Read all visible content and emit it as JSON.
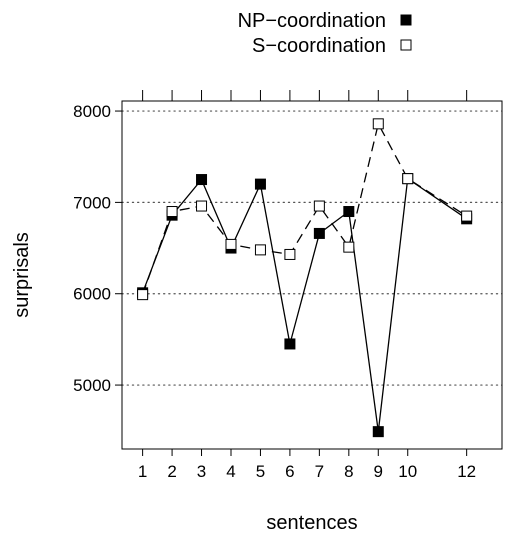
{
  "chart_data": {
    "type": "line",
    "xlabel": "sentences",
    "ylabel": "surprisals",
    "x_ticks": [
      1,
      2,
      3,
      4,
      5,
      6,
      7,
      8,
      9,
      10,
      12
    ],
    "y_ticks": [
      5000,
      6000,
      7000,
      8000
    ],
    "xlim": [
      0.3,
      13.2
    ],
    "ylim": [
      4300,
      8110
    ],
    "grid": "horizontal dotted",
    "legend_position": "top",
    "series": [
      {
        "name": "NP−coordination",
        "marker": "filled-square",
        "line_style": "solid",
        "x": [
          1,
          2,
          3,
          4,
          5,
          6,
          7,
          8,
          9,
          10,
          12
        ],
        "y": [
          6010,
          6860,
          7250,
          6500,
          7200,
          5450,
          6660,
          6900,
          4490,
          7260,
          6820
        ]
      },
      {
        "name": "S−coordination",
        "marker": "open-square",
        "line_style": "dashed",
        "x": [
          1,
          2,
          3,
          4,
          5,
          6,
          7,
          8,
          9,
          10,
          12
        ],
        "y": [
          5990,
          6900,
          6960,
          6540,
          6480,
          6430,
          6960,
          6510,
          7860,
          7260,
          6850
        ]
      }
    ]
  }
}
